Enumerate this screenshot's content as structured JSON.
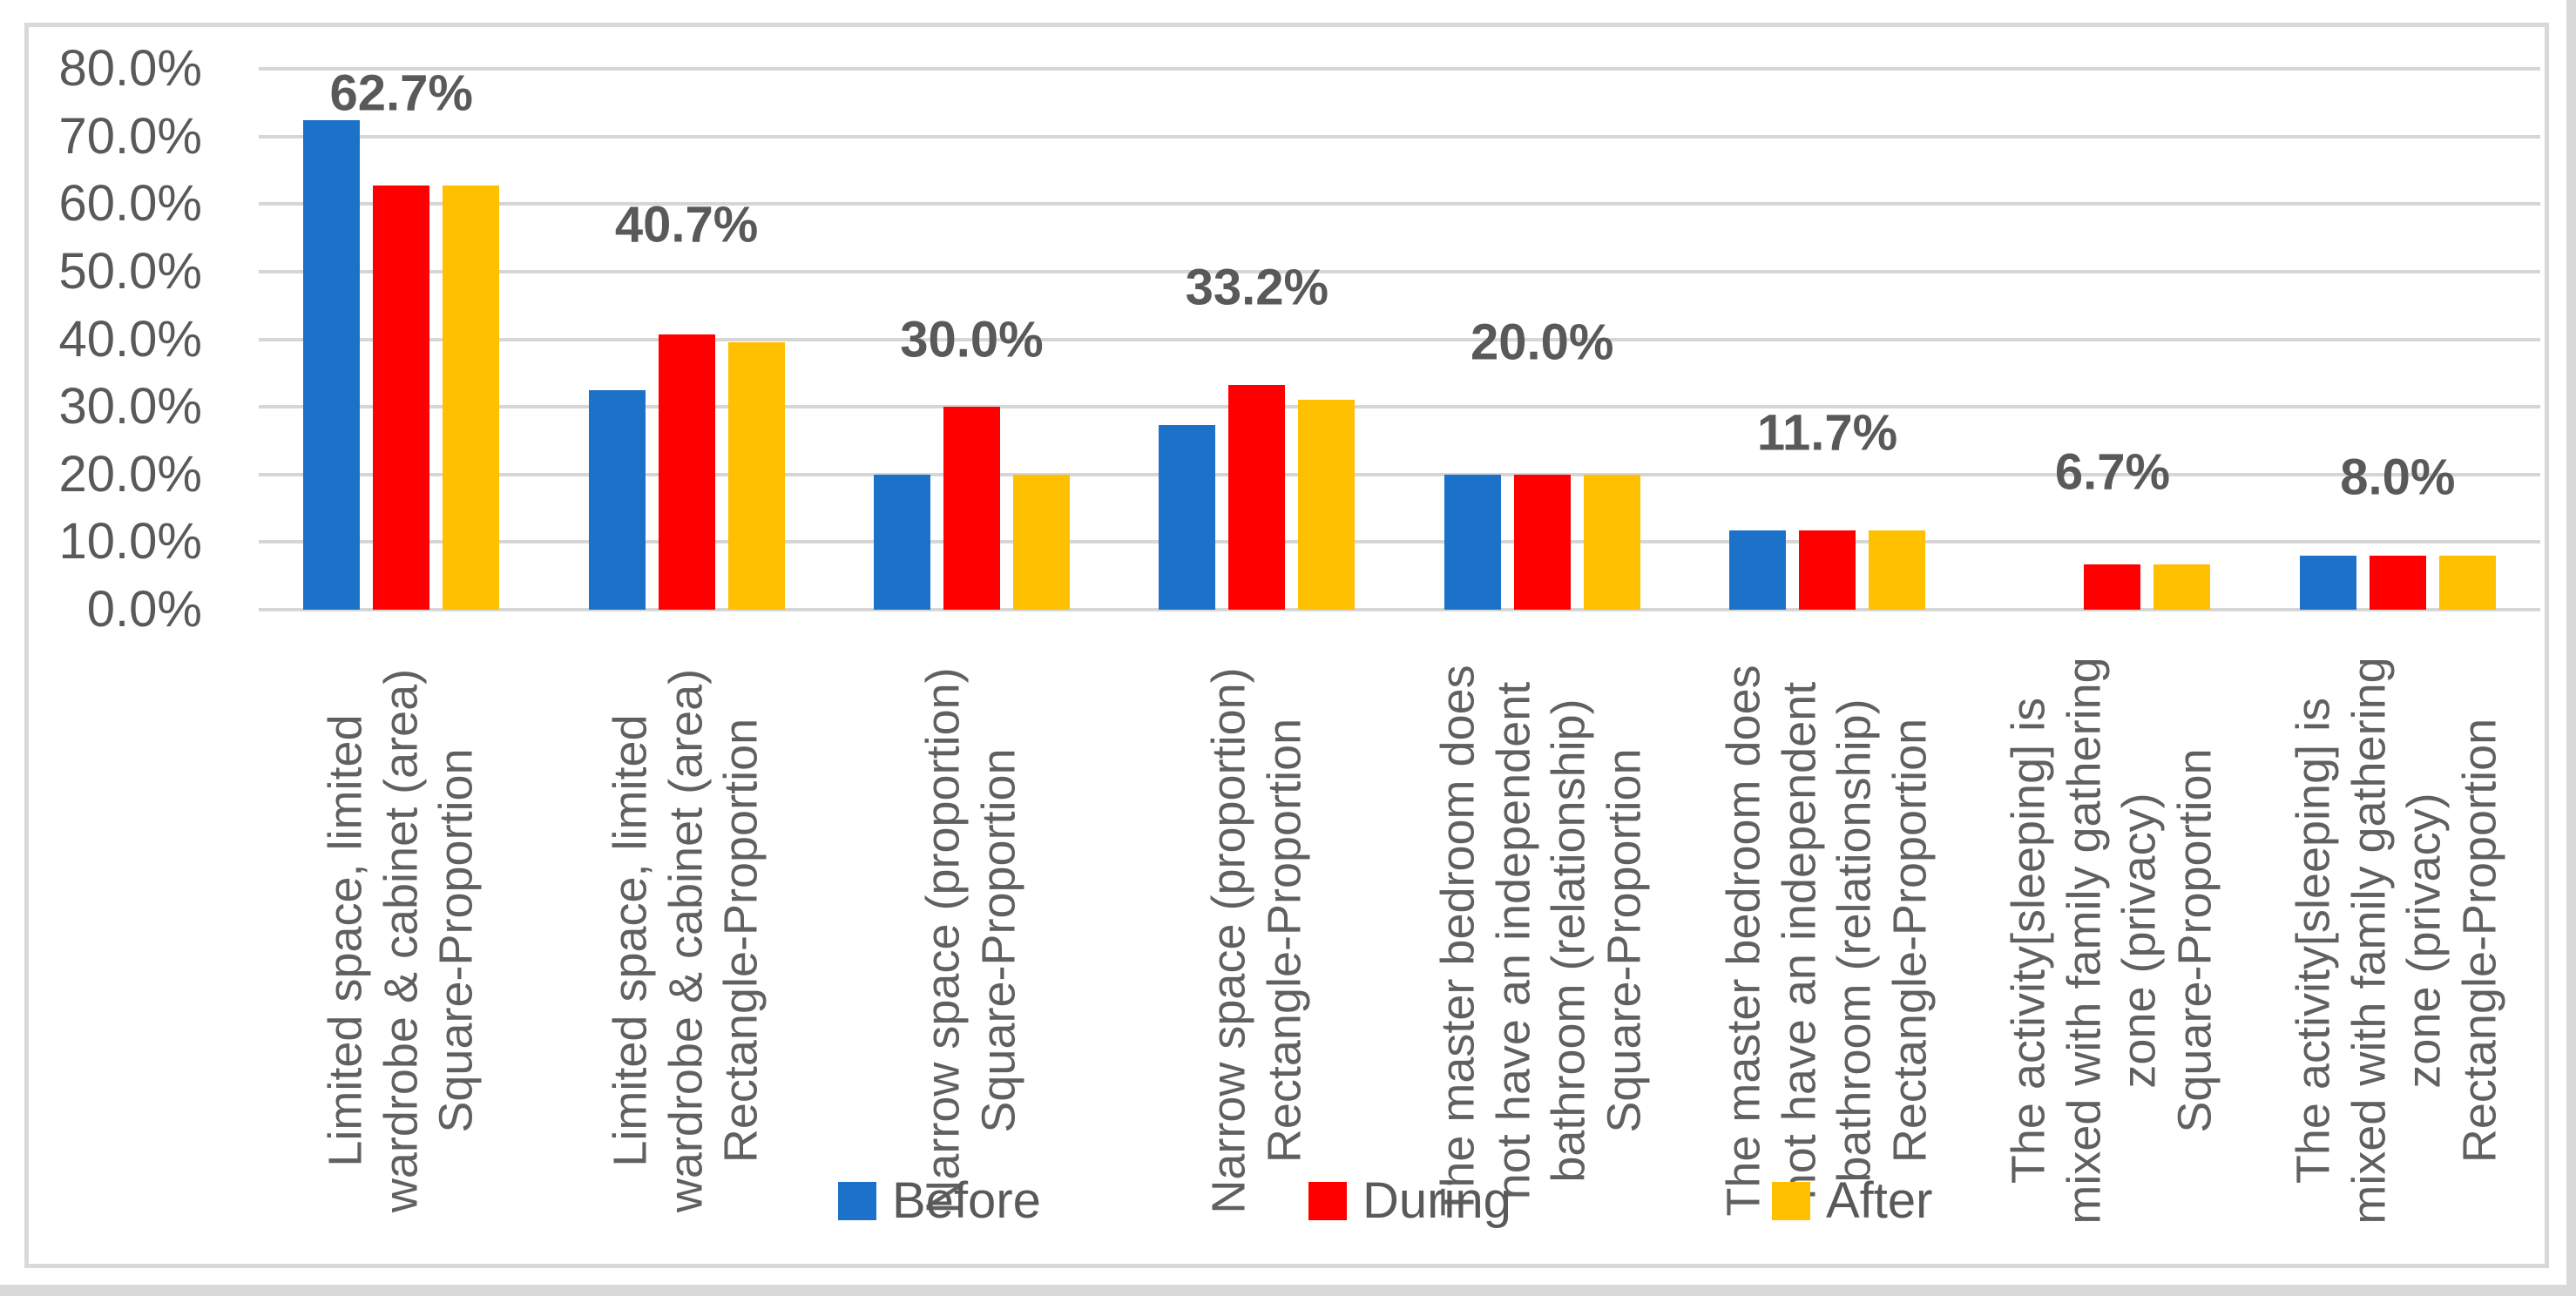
{
  "chart_data": {
    "type": "bar",
    "title": "",
    "xlabel": "",
    "ylabel": "",
    "categories": [
      [
        "Limited space, limited",
        "wardrobe & cabinet (area)",
        "Square-Proportion"
      ],
      [
        "Limited space, limited",
        "wardrobe & cabinet (area)",
        "Rectangle-Proportion"
      ],
      [
        "Narrow space (proportion)",
        "Square-Proportion"
      ],
      [
        "Narrow space (proportion)",
        "Rectangle-Proportion"
      ],
      [
        "The master bedroom does",
        "not have an independent",
        "bathroom (relationship)",
        "Square-Proportion"
      ],
      [
        "The master bedroom does",
        "not have an independent",
        "bathroom (relationship)",
        "Rectangle-Proportion"
      ],
      [
        "The activity[sleeping] is",
        "mixed with family gathering",
        "zone (privacy)",
        "Square-Proportion"
      ],
      [
        "The activity[sleeping] is",
        "mixed with family gathering",
        "zone (privacy)",
        "Rectangle-Proportion"
      ]
    ],
    "series": [
      {
        "name": "Before",
        "color": "#1B72C8",
        "values": [
          72.4,
          32.4,
          20.0,
          27.3,
          20.0,
          11.7,
          0,
          8.0
        ]
      },
      {
        "name": "During",
        "color": "#FF0000",
        "values": [
          62.7,
          40.7,
          30.0,
          33.2,
          20.0,
          11.7,
          6.7,
          8.0
        ]
      },
      {
        "name": "After",
        "color": "#FFC000",
        "values": [
          62.7,
          39.5,
          20.0,
          31.1,
          20.0,
          11.7,
          6.7,
          8.0
        ]
      }
    ],
    "data_labels": [
      {
        "text": "62.7%",
        "y_value": 76.4
      },
      {
        "text": "40.7%",
        "y_value": 56.9
      },
      {
        "text": "30.0%",
        "y_value": 39.9
      },
      {
        "text": "33.2%",
        "y_value": 47.7
      },
      {
        "text": "20.0%",
        "y_value": 39.5
      },
      {
        "text": "11.7%",
        "y_value": 26.1
      },
      {
        "text": "6.7%",
        "y_value": 20.3
      },
      {
        "text": "8.0%",
        "y_value": 19.6
      }
    ],
    "y_axis": {
      "min": 0,
      "max": 80,
      "step": 10,
      "tick_labels": [
        "80.0%",
        "70.0%",
        "60.0%",
        "50.0%",
        "40.0%",
        "30.0%",
        "20.0%",
        "10.0%",
        "0.0%"
      ],
      "grid": true
    },
    "legend": {
      "position": "bottom",
      "entries": [
        {
          "label": "Before",
          "color": "#1B72C8"
        },
        {
          "label": "During",
          "color": "#FF0000"
        },
        {
          "label": "After",
          "color": "#FFC000"
        }
      ]
    }
  },
  "colors": {
    "axis_text": "#595959",
    "category_text": "#606060",
    "data_label_text": "#595959",
    "gridline": "#D6D6D6",
    "frame_border": "#D9D9D9",
    "background": "#FFFFFF",
    "edge_strip": "#D9D9D9"
  }
}
